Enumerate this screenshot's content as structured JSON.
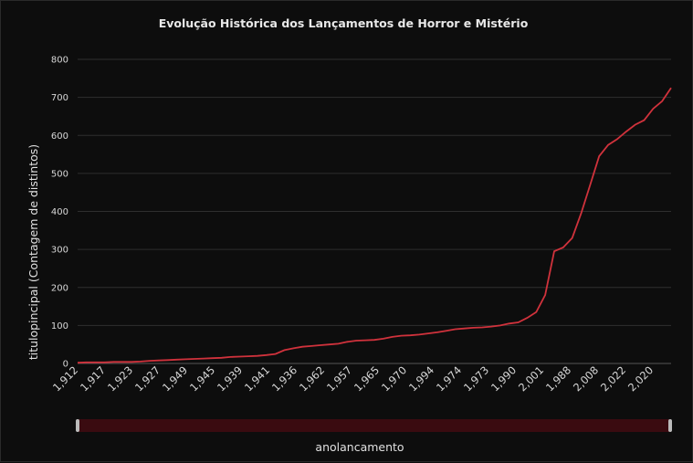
{
  "chart_data": {
    "type": "line",
    "title": "Evolução Histórica dos Lançamentos de Horror e Mistério",
    "xlabel": "anolancamento",
    "ylabel": "titulopincipal (Contagem de distintos)",
    "ylim": [
      0,
      800
    ],
    "y_ticks": [
      "0",
      "100",
      "200",
      "300",
      "400",
      "500",
      "600",
      "700",
      "800"
    ],
    "x_tick_labels": [
      "1,912",
      "1,917",
      "1,923",
      "1,927",
      "1,949",
      "1,945",
      "1,939",
      "1,941",
      "1,936",
      "1,962",
      "1,957",
      "1,965",
      "1,970",
      "1,994",
      "1,974",
      "1,973",
      "1,990",
      "2,001",
      "1,988",
      "2,008",
      "2,022",
      "2,020"
    ],
    "grid": true,
    "line_color": "#d0323c",
    "series": [
      {
        "values": [
          2,
          3,
          3,
          3,
          4,
          4,
          4,
          5,
          7,
          8,
          9,
          10,
          11,
          12,
          13,
          14,
          15,
          17,
          18,
          19,
          20,
          22,
          25,
          35,
          40,
          44,
          46,
          48,
          50,
          52,
          57,
          60,
          61,
          62,
          65,
          70,
          73,
          74,
          76,
          79,
          82,
          86,
          90,
          92,
          94,
          95,
          97,
          100,
          105,
          108,
          120,
          135,
          180,
          295,
          305,
          330,
          395,
          470,
          545,
          575,
          590,
          610,
          628,
          640,
          670,
          690,
          725
        ]
      }
    ]
  },
  "scrollbar": {
    "color": "#3a0b10"
  }
}
